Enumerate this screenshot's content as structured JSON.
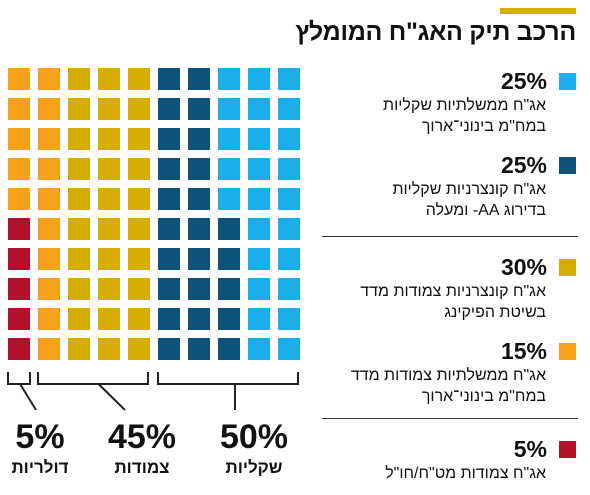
{
  "title": "הרכב תיק האג\"ח המומלץ",
  "colors": {
    "accent": "#d4ad00",
    "light_blue": "#1aaeea",
    "dark_blue": "#0d5278",
    "mustard": "#d4ad00",
    "orange": "#f7a11b",
    "red": "#b5102b",
    "divider": "#333333"
  },
  "legend": [
    {
      "percent": "25%",
      "label": "אג\"ח ממשלתיות שקליות במח\"מ בינוני־ארוך",
      "color": "#1aaeea"
    },
    {
      "percent": "25%",
      "label": "אג\"ח קונצרניות שקליות בדירוג AA- ומעלה",
      "color": "#0d5278"
    },
    {
      "percent": "30%",
      "label": "אג\"ח קונצרניות צמודות מדד בשיטת הפיקינג",
      "color": "#d4ad00"
    },
    {
      "percent": "15%",
      "label": "אג\"ח ממשלתיות צמודות מדד במח\"מ בינוני־ארוך",
      "color": "#f7a11b"
    },
    {
      "percent": "5%",
      "label": "אג\"ח צמודות מט\"ח/חו\"ל",
      "color": "#b5102b"
    }
  ],
  "groups": [
    {
      "percent": "50%",
      "label": "שקליות"
    },
    {
      "percent": "45%",
      "label": "צמודות"
    },
    {
      "percent": "5%",
      "label": "דולריות"
    }
  ],
  "chart_data": {
    "type": "waffle",
    "grid": {
      "columns": 10,
      "rows": 10,
      "fill_order": "right-to-left by column, top-to-bottom"
    },
    "title": "הרכב תיק האג\"ח המומלץ",
    "segments": [
      {
        "label": "אג\"ח ממשלתיות שקליות במח\"מ בינוני־ארוך",
        "value": 25,
        "color": "#1aaeea"
      },
      {
        "label": "אג\"ח קונצרניות שקליות בדירוג AA- ומעלה",
        "value": 25,
        "color": "#0d5278"
      },
      {
        "label": "אג\"ח קונצרניות צמודות מדד בשיטת הפיקינג",
        "value": 30,
        "color": "#d4ad00"
      },
      {
        "label": "אג\"ח ממשלתיות צמודות מדד במח\"מ בינוני־ארוך",
        "value": 15,
        "color": "#f7a11b"
      },
      {
        "label": "אג\"ח צמודות מט\"ח/חו\"ל",
        "value": 5,
        "color": "#b5102b"
      }
    ],
    "groups": [
      {
        "label": "שקליות",
        "value": 50
      },
      {
        "label": "צמודות",
        "value": 45
      },
      {
        "label": "דולריות",
        "value": 5
      }
    ]
  }
}
